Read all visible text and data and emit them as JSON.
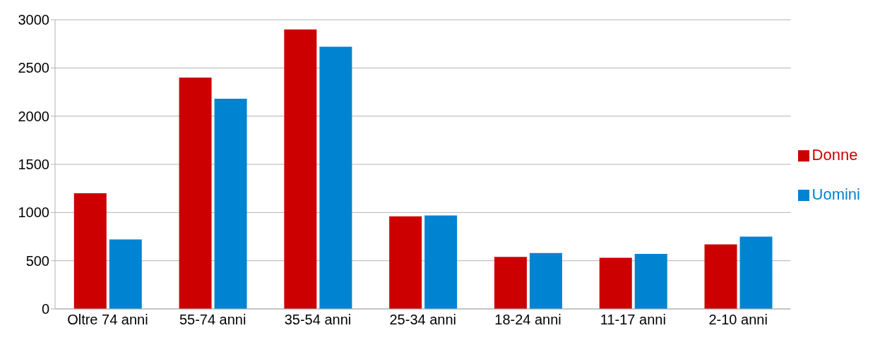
{
  "chart_data": {
    "type": "bar",
    "categories": [
      "Oltre 74 anni",
      "55-74 anni",
      "35-54 anni",
      "25-34 anni",
      "18-24 anni",
      "11-17 anni",
      "2-10 anni"
    ],
    "series": [
      {
        "name": "Donne",
        "color": "#cc0000",
        "values": [
          1200,
          2400,
          2900,
          960,
          540,
          530,
          670
        ]
      },
      {
        "name": "Uomini",
        "color": "#0084d1",
        "values": [
          720,
          2180,
          2720,
          970,
          580,
          570,
          750
        ]
      }
    ],
    "ylim": [
      0,
      3000
    ],
    "yticks": [
      0,
      500,
      1000,
      1500,
      2000,
      2500,
      3000
    ],
    "grid": "y",
    "legend": "right"
  }
}
